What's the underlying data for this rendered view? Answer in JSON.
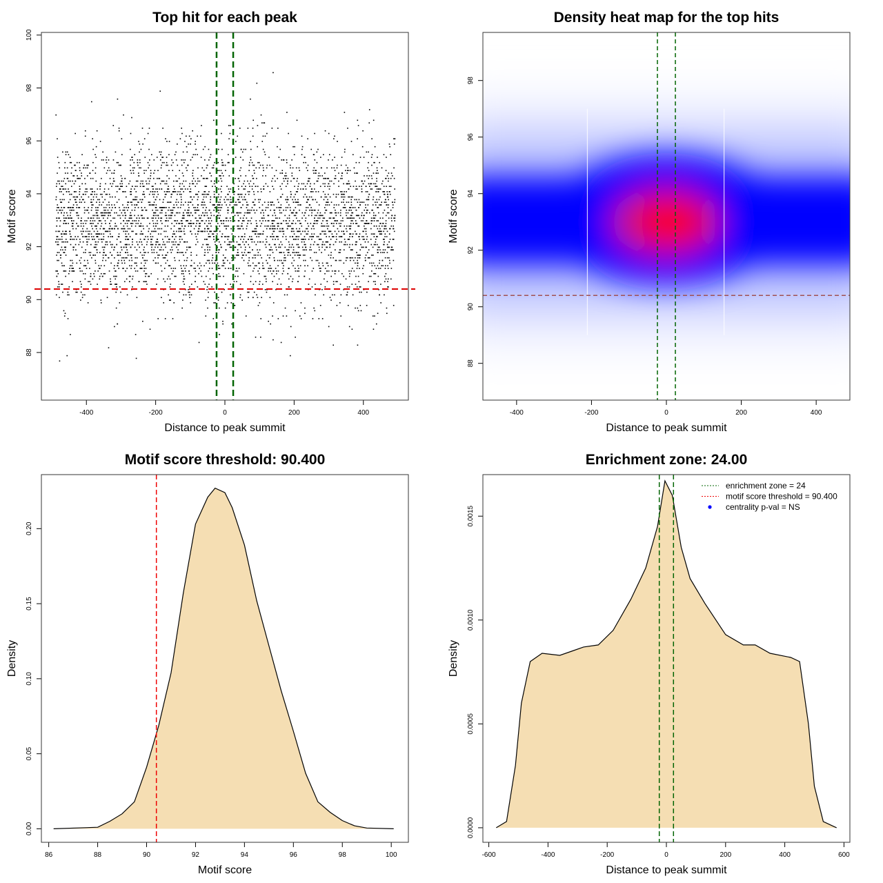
{
  "chart_data": [
    {
      "type": "scatter",
      "title": "Top hit for each peak",
      "xlabel": "Distance to peak summit",
      "ylabel": "Motif score",
      "xlim": [
        -530,
        530
      ],
      "ylim": [
        86.2,
        100.1
      ],
      "xticks": [
        "-400",
        "-200",
        "0",
        "200",
        "400"
      ],
      "yticks": [
        "88",
        "90",
        "92",
        "94",
        "96",
        "98",
        "100"
      ],
      "points_summary": {
        "x_range": [
          -490,
          490
        ],
        "score_center": 92.9,
        "score_sd": 1.5,
        "score_step": 0.1,
        "approx_count": 4000
      },
      "vlines": [
        -24,
        24
      ],
      "hline": 90.4,
      "colors": {
        "points": "#000000",
        "vlines": "#006400",
        "hline": "#dd0000"
      }
    },
    {
      "type": "heatmap",
      "title": "Density heat map for the top hits",
      "xlabel": "Distance to peak summit",
      "ylabel": "Motif score",
      "xlim": [
        -490,
        490
      ],
      "ylim": [
        86.7,
        99.7
      ],
      "xticks": [
        "-400",
        "-200",
        "0",
        "200",
        "400"
      ],
      "yticks": [
        "88",
        "90",
        "92",
        "94",
        "96",
        "98"
      ],
      "peak": {
        "x": 0,
        "y": 93
      },
      "vlines": [
        -24,
        24
      ],
      "hline": 90.4,
      "colors": {
        "low": "#ffffff",
        "mid": "#0000ff",
        "high": "#ff0000",
        "vlines": "#006400",
        "hline": "#a05050"
      }
    },
    {
      "type": "area",
      "title": "Motif score threshold: 90.400",
      "xlabel": "Motif score",
      "ylabel": "Density",
      "xlim": [
        85.7,
        100.7
      ],
      "ylim": [
        -0.009,
        0.236
      ],
      "xticks": [
        "86",
        "88",
        "90",
        "92",
        "94",
        "96",
        "98",
        "100"
      ],
      "yticks": [
        "0.00",
        "0.05",
        "0.10",
        "0.15",
        "0.20"
      ],
      "x": [
        86.2,
        88,
        88.5,
        89,
        89.5,
        90,
        90.5,
        91,
        91.5,
        92,
        92.5,
        92.8,
        93.2,
        93.5,
        94,
        94.5,
        95,
        95.5,
        96,
        96.5,
        97,
        97.5,
        98,
        98.5,
        99,
        100.1
      ],
      "y": [
        0,
        0.001,
        0.005,
        0.01,
        0.018,
        0.041,
        0.069,
        0.104,
        0.157,
        0.203,
        0.221,
        0.227,
        0.224,
        0.214,
        0.189,
        0.152,
        0.122,
        0.092,
        0.065,
        0.037,
        0.018,
        0.011,
        0.0055,
        0.002,
        0.0005,
        0
      ],
      "vline": 90.4,
      "colors": {
        "fill": "#f5deb3",
        "line": "#000000",
        "vline": "#ee0000"
      }
    },
    {
      "type": "area",
      "title": "Enrichment zone: 24.00",
      "xlabel": "Distance to peak summit",
      "ylabel": "Density",
      "xlim": [
        -620,
        620
      ],
      "ylim": [
        -7e-05,
        0.0017
      ],
      "xticks": [
        "-600",
        "-400",
        "-200",
        "0",
        "200",
        "400",
        "600"
      ],
      "yticks": [
        "0.0000",
        "0.0005",
        "0.0010",
        "0.0015"
      ],
      "x": [
        -575,
        -540,
        -510,
        -490,
        -460,
        -420,
        -360,
        -320,
        -280,
        -230,
        -180,
        -120,
        -70,
        -30,
        -5,
        20,
        50,
        80,
        130,
        200,
        260,
        300,
        350,
        420,
        450,
        480,
        500,
        530,
        575
      ],
      "y": [
        0,
        3e-05,
        0.0003,
        0.0006,
        0.0008,
        0.00084,
        0.00083,
        0.00085,
        0.00087,
        0.00088,
        0.00095,
        0.0011,
        0.00125,
        0.00145,
        0.00167,
        0.0016,
        0.00135,
        0.0012,
        0.00108,
        0.00093,
        0.00088,
        0.00088,
        0.00084,
        0.00082,
        0.0008,
        0.0005,
        0.0002,
        3e-05,
        0
      ],
      "vlines": [
        -24,
        24
      ],
      "legend": [
        "enrichment zone = 24",
        "motif score threshold = 90.400",
        "centrality p-val = NS"
      ],
      "legend_position": "top-right",
      "colors": {
        "fill": "#f5deb3",
        "line": "#000000",
        "vlines": "#006400",
        "legend_green": "#006400",
        "legend_red": "#ee0000",
        "legend_blue": "#0000ff"
      }
    }
  ]
}
